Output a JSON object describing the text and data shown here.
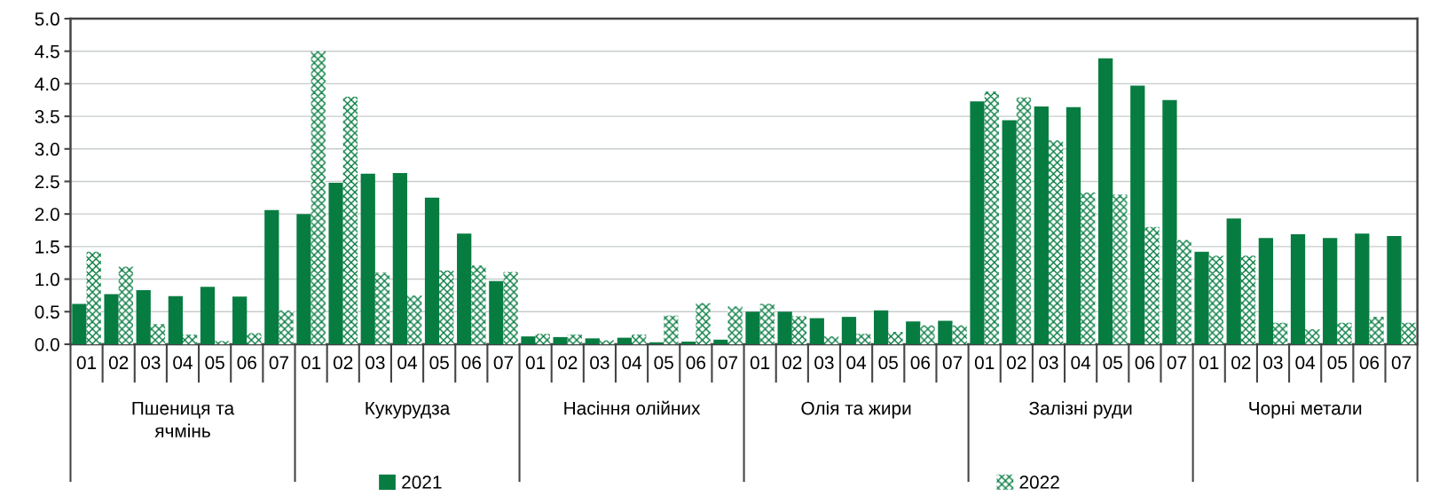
{
  "chart_data": {
    "type": "bar",
    "categories": [
      "01",
      "02",
      "03",
      "04",
      "05",
      "06",
      "07",
      "01",
      "02",
      "03",
      "04",
      "05",
      "06",
      "07",
      "01",
      "02",
      "03",
      "04",
      "05",
      "06",
      "07",
      "01",
      "02",
      "03",
      "04",
      "05",
      "06",
      "07",
      "01",
      "02",
      "03",
      "04",
      "05",
      "06",
      "07",
      "01",
      "02",
      "03",
      "04",
      "05",
      "06",
      "07"
    ],
    "series": [
      {
        "name": "2021",
        "color": "#077c41",
        "values": [
          0.62,
          0.77,
          0.83,
          0.74,
          0.88,
          0.73,
          2.06,
          2.0,
          2.48,
          2.62,
          2.63,
          2.25,
          1.7,
          0.97,
          0.12,
          0.11,
          0.09,
          0.1,
          0.03,
          0.04,
          0.07,
          0.5,
          0.5,
          0.4,
          0.42,
          0.52,
          0.35,
          0.36,
          3.73,
          3.44,
          3.65,
          3.64,
          4.39,
          3.97,
          3.75,
          1.42,
          1.93,
          1.63,
          1.69,
          1.63,
          1.7,
          1.66
        ]
      },
      {
        "name": "2022",
        "color": "#077c41",
        "type": "bar",
        "values": [
          1.42,
          1.19,
          0.31,
          0.15,
          0.05,
          0.17,
          0.52,
          4.5,
          3.8,
          1.1,
          0.75,
          1.13,
          1.21,
          1.11,
          0.16,
          0.15,
          0.06,
          0.15,
          0.44,
          0.63,
          0.58,
          0.62,
          0.43,
          0.12,
          0.16,
          0.19,
          0.29,
          0.29,
          3.88,
          3.79,
          3.13,
          2.33,
          2.3,
          1.8,
          1.6,
          1.36,
          1.36,
          0.33,
          0.23,
          0.33,
          0.42,
          0.33
        ]
      }
    ],
    "annotations": [
      "Пшениця та\nячмінь",
      "Кукурудза",
      "Насіння олійних",
      "Олія та жири",
      "Залізні руди",
      "Чорні метали"
    ],
    "ylim": [
      0,
      5
    ],
    "yticks": [
      {
        "value": 0,
        "label": "0.0"
      },
      0.5,
      {
        "value": 1,
        "label": "1.0"
      },
      1.5,
      {
        "value": 2,
        "label": "2.0"
      },
      2.5,
      {
        "value": 3,
        "label": "3.0"
      },
      3.5,
      {
        "value": 4,
        "label": "4.0"
      },
      4.5,
      {
        "value": 5,
        "label": "5.0"
      }
    ],
    "grid": "y",
    "legend": "bottom"
  }
}
